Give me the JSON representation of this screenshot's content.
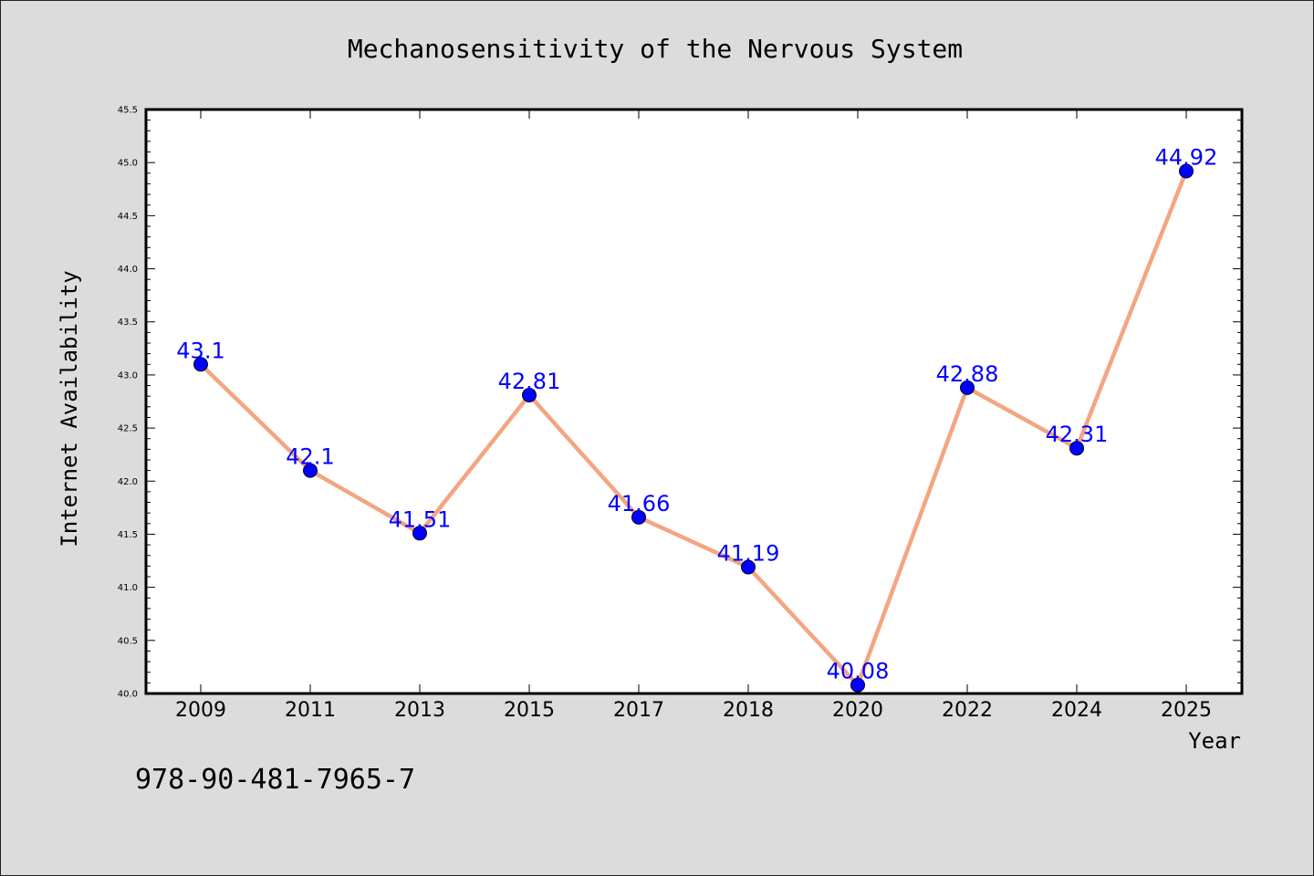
{
  "chart_data": {
    "type": "line",
    "title": "Mechanosensitivity of the Nervous System",
    "xlabel": "Year",
    "ylabel": "Internet Availability",
    "categories": [
      "2009",
      "2011",
      "2013",
      "2015",
      "2017",
      "2018",
      "2020",
      "2022",
      "2024",
      "2025"
    ],
    "series": [
      {
        "values": [
          43.1,
          42.1,
          41.51,
          42.81,
          41.66,
          41.19,
          40.08,
          42.88,
          42.31,
          44.92
        ],
        "labels": [
          "43.1",
          "42.1",
          "41.51",
          "42.81",
          "41.66",
          "41.19",
          "40.08",
          "42.88",
          "42.31",
          "44.92"
        ],
        "line_color": "#f4a582",
        "marker_color": "#0000ff"
      }
    ],
    "ylim": [
      40.0,
      45.5
    ],
    "yticks": [
      "40.0",
      "40.5",
      "41.0",
      "41.5",
      "42.0",
      "42.5",
      "43.0",
      "43.5",
      "44.0",
      "44.5",
      "45.0",
      "45.5"
    ],
    "grid": false,
    "legend": "none"
  },
  "footer_text": "978-90-481-7965-7"
}
